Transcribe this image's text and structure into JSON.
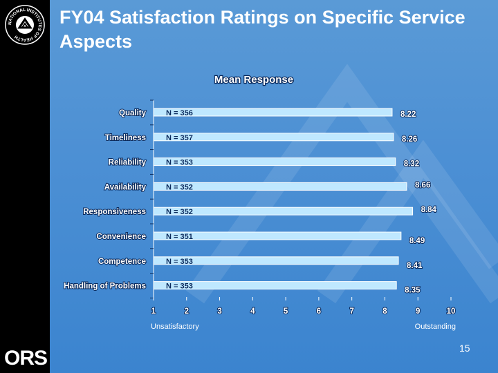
{
  "slide": {
    "title": "FY04 Satisfaction Ratings on Specific Service Aspects",
    "slide_number": "15",
    "seal_text": "NATIONAL INSTITUTES OF HEALTH",
    "footer_logo": "ORS"
  },
  "colors": {
    "bar": "#bfe8ff",
    "bar_stroke": "#ffffff",
    "text_dark": "#0b2a5c",
    "text_light": "#ffffff"
  },
  "chart_data": {
    "type": "bar",
    "orientation": "horizontal",
    "title": "Mean Response",
    "categories": [
      "Quality",
      "Timeliness",
      "Reliability",
      "Availability",
      "Responsiveness",
      "Convenience",
      "Competence",
      "Handling of Problems"
    ],
    "values": [
      8.22,
      8.26,
      8.32,
      8.66,
      8.84,
      8.49,
      8.41,
      8.35
    ],
    "value_labels": [
      "8.22",
      "8.26",
      "8.32",
      "8.66",
      "8.84",
      "8.49",
      "8.41",
      "8.35"
    ],
    "n_labels": [
      "N = 356",
      "N = 357",
      "N = 353",
      "N = 352",
      "N = 352",
      "N = 351",
      "N = 353",
      "N = 353"
    ],
    "xlim": [
      1,
      10
    ],
    "xticks": [
      1,
      2,
      3,
      4,
      5,
      6,
      7,
      8,
      9,
      10
    ],
    "xlabel_left": "Unsatisfactory",
    "xlabel_right": "Outstanding"
  }
}
